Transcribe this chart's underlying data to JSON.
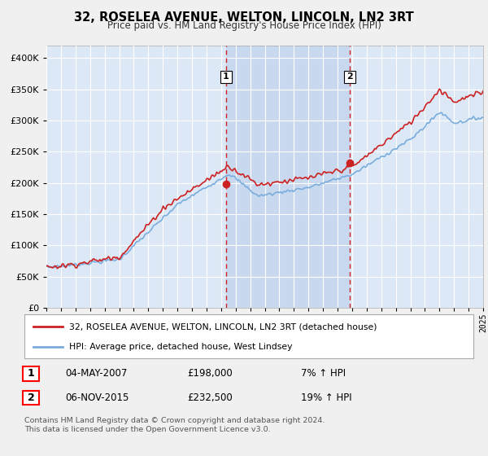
{
  "title": "32, ROSELEA AVENUE, WELTON, LINCOLN, LN2 3RT",
  "subtitle": "Price paid vs. HM Land Registry's House Price Index (HPI)",
  "legend_line1": "32, ROSELEA AVENUE, WELTON, LINCOLN, LN2 3RT (detached house)",
  "legend_line2": "HPI: Average price, detached house, West Lindsey",
  "transaction1_date": "04-MAY-2007",
  "transaction1_price": "£198,000",
  "transaction1_hpi": "7% ↑ HPI",
  "transaction2_date": "06-NOV-2015",
  "transaction2_price": "£232,500",
  "transaction2_hpi": "19% ↑ HPI",
  "footer": "Contains HM Land Registry data © Crown copyright and database right 2024.\nThis data is licensed under the Open Government Licence v3.0.",
  "fig_bg_color": "#f0f0f0",
  "plot_bg_color": "#dce8f5",
  "highlight_bg_color": "#c8d8ee",
  "red_color": "#cc2222",
  "blue_color": "#7aaddd",
  "vline_color": "#cc2222",
  "grid_color": "#ffffff",
  "ylim_min": 0,
  "ylim_max": 420000,
  "yticks": [
    0,
    50000,
    100000,
    150000,
    200000,
    250000,
    300000,
    350000,
    400000
  ],
  "transaction1_x": 2007.34,
  "transaction1_y": 198000,
  "transaction2_x": 2015.84,
  "transaction2_y": 232500,
  "xmin": 1995,
  "xmax": 2025
}
